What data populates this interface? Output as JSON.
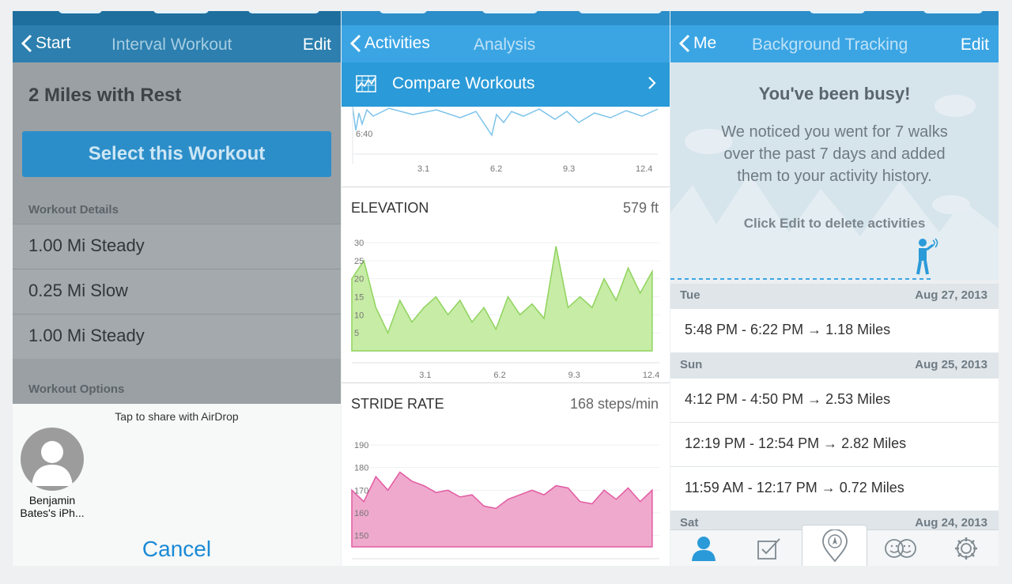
{
  "colors": {
    "accent": "#3ba5e4",
    "elevation": "#8fd35e",
    "stride": "#e25ba2",
    "pace": "#7cc3ea"
  },
  "panel1": {
    "nav": {
      "back": "Start",
      "title": "Interval Workout",
      "edit": "Edit"
    },
    "workout_title": "2 Miles with Rest",
    "select_button": "Select this Workout",
    "details_header": "Workout Details",
    "details": [
      "1.00 Mi Steady",
      "0.25 Mi Slow",
      "1.00 Mi Steady"
    ],
    "options_header": "Workout Options",
    "share": {
      "hint": "Tap to share with AirDrop",
      "contact_line1": "Benjamin",
      "contact_line2": "Bates's iPh...",
      "cancel": "Cancel"
    }
  },
  "panel2": {
    "nav": {
      "back": "Activities",
      "title": "Analysis"
    },
    "compare": "Compare Workouts",
    "pace": {
      "y_tick": "6:40",
      "x_ticks": [
        "3.1",
        "6.2",
        "9.3",
        "12.4"
      ]
    },
    "elevation": {
      "title": "ELEVATION",
      "value": "579 ft",
      "y_ticks": [
        "30",
        "25",
        "20",
        "15",
        "10",
        "5"
      ],
      "x_ticks": [
        "3.1",
        "6.2",
        "9.3",
        "12.4"
      ]
    },
    "stride": {
      "title": "STRIDE RATE",
      "value": "168 steps/min",
      "y_ticks": [
        "190",
        "180",
        "170",
        "160",
        "150"
      ],
      "x_ticks": [
        "3.1",
        "6.2",
        "9.3",
        "12.4"
      ]
    }
  },
  "panel3": {
    "nav": {
      "back": "Me",
      "title": "Background Tracking",
      "edit": "Edit"
    },
    "hero": {
      "title": "You've been busy!",
      "line1": "We noticed you went for 7 walks",
      "line2": "over the past 7 days and added",
      "line3": "them to your activity history.",
      "hint": "Click Edit to delete activities"
    },
    "days": [
      {
        "day": "Tue",
        "date": "Aug 27, 2013",
        "entries": [
          "5:48 PM - 6:22 PM → 1.18 Miles"
        ]
      },
      {
        "day": "Sun",
        "date": "Aug 25, 2013",
        "entries": [
          "4:12 PM - 4:50 PM → 2.53 Miles",
          "12:19 PM - 12:54 PM → 2.82 Miles",
          "11:59 AM - 12:17 PM → 0.72 Miles"
        ]
      },
      {
        "day": "Sat",
        "date": "Aug 24, 2013",
        "entries": []
      }
    ],
    "tabs": [
      "me-icon",
      "checklist-icon",
      "route-icon",
      "friends-icon",
      "settings-icon"
    ]
  },
  "chart_data": [
    {
      "type": "area",
      "title": "ELEVATION",
      "x": [
        0,
        0.5,
        1,
        1.5,
        2,
        2.5,
        3,
        3.5,
        4,
        4.5,
        5,
        5.5,
        6,
        6.5,
        7,
        7.5,
        8,
        8.5,
        9,
        9.5,
        10,
        10.5,
        11,
        11.5,
        12,
        12.5
      ],
      "y": [
        20,
        25,
        12,
        5,
        14,
        8,
        12,
        15,
        10,
        14,
        8,
        12,
        6,
        15,
        10,
        13,
        9,
        29,
        12,
        15,
        12,
        20,
        14,
        23,
        16,
        22
      ],
      "ylim": [
        0,
        30
      ],
      "xticks": [
        3.1,
        6.2,
        9.3,
        12.4
      ]
    },
    {
      "type": "area",
      "title": "STRIDE RATE",
      "x": [
        0,
        0.5,
        1,
        1.5,
        2,
        2.5,
        3,
        3.5,
        4,
        4.5,
        5,
        5.5,
        6,
        6.5,
        7,
        7.5,
        8,
        8.5,
        9,
        9.5,
        10,
        10.5,
        11,
        11.5,
        12,
        12.5
      ],
      "y": [
        170,
        165,
        176,
        170,
        178,
        174,
        172,
        169,
        170,
        167,
        168,
        163,
        162,
        166,
        168,
        170,
        168,
        172,
        171,
        165,
        164,
        170,
        166,
        171,
        165,
        170
      ],
      "ylim": [
        145,
        190
      ],
      "xticks": [
        3.1,
        6.2,
        9.3,
        12.4
      ]
    }
  ]
}
